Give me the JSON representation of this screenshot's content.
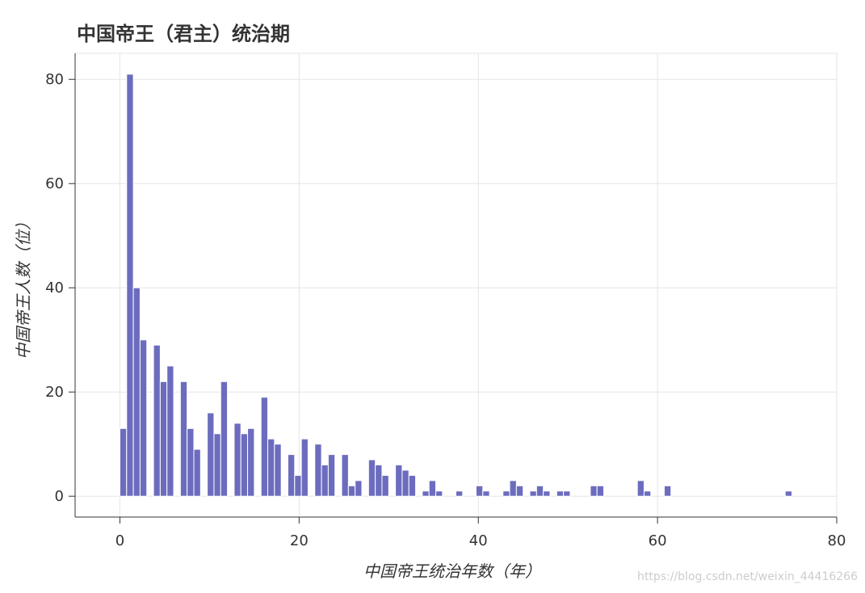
{
  "chart_data": {
    "type": "histogram",
    "title": "中国帝王（君主）统治期",
    "x_label": "中国帝王统治年数（年）",
    "y_label": "中国帝王人数（位）",
    "watermark": "https://blog.csdn.net/weixin_44416266",
    "color": "#6c6cbf",
    "grid": true,
    "bins": [
      0,
      0.75,
      1.5,
      2.25,
      3,
      3.75,
      4.5,
      5.25,
      6,
      6.75,
      7.5,
      8.25,
      9,
      9.75,
      10.5,
      11.25,
      12,
      12.75,
      13.5,
      14.25,
      15,
      15.75,
      16.5,
      17.25,
      18,
      18.75,
      19.5,
      20.25,
      21,
      21.75,
      22.5,
      23.25,
      24,
      24.75,
      25.5,
      26.25,
      27,
      27.75,
      28.5,
      29.25,
      30,
      30.75,
      31.5,
      32.25,
      33,
      33.75,
      34.5,
      35.25,
      36,
      36.75,
      37.5,
      38.25,
      39,
      39.75,
      40.5,
      41.25,
      42,
      42.75,
      43.5,
      44.25,
      45,
      45.75,
      46.5,
      47.25,
      48,
      48.75,
      49.5,
      50.25,
      51,
      51.75,
      52.5,
      53.25,
      54,
      54.75,
      55.5,
      56.25,
      57,
      57.75,
      58.5,
      59.25,
      60,
      60.75,
      61.5,
      62.25,
      63,
      63.75,
      64.5,
      65.25,
      66,
      66.75,
      67.5,
      68.25,
      69,
      69.75,
      70.5,
      71.25,
      72,
      72.75,
      73.5,
      74.25,
      75
    ],
    "values": [
      13,
      81,
      40,
      30,
      0,
      29,
      22,
      25,
      0,
      22,
      13,
      9,
      0,
      16,
      12,
      22,
      0,
      14,
      12,
      13,
      0,
      19,
      11,
      10,
      0,
      8,
      4,
      11,
      0,
      10,
      6,
      8,
      0,
      8,
      2,
      3,
      0,
      7,
      6,
      4,
      0,
      6,
      5,
      4,
      0,
      1,
      3,
      1,
      0,
      0,
      1,
      0,
      0,
      2,
      1,
      0,
      0,
      1,
      3,
      2,
      0,
      1,
      2,
      1,
      0,
      1,
      1,
      0,
      0,
      0,
      2,
      2,
      0,
      0,
      0,
      0,
      0,
      3,
      1,
      0,
      0,
      2,
      0,
      0,
      0,
      0,
      0,
      0,
      0,
      0,
      0,
      0,
      0,
      0,
      0,
      0,
      0,
      0,
      0,
      1
    ],
    "xlim": [
      -5,
      80
    ],
    "ylim": [
      -4,
      85
    ],
    "xticks": [
      0,
      20,
      40,
      60,
      80
    ],
    "yticks": [
      0,
      20,
      40,
      60,
      80
    ]
  }
}
